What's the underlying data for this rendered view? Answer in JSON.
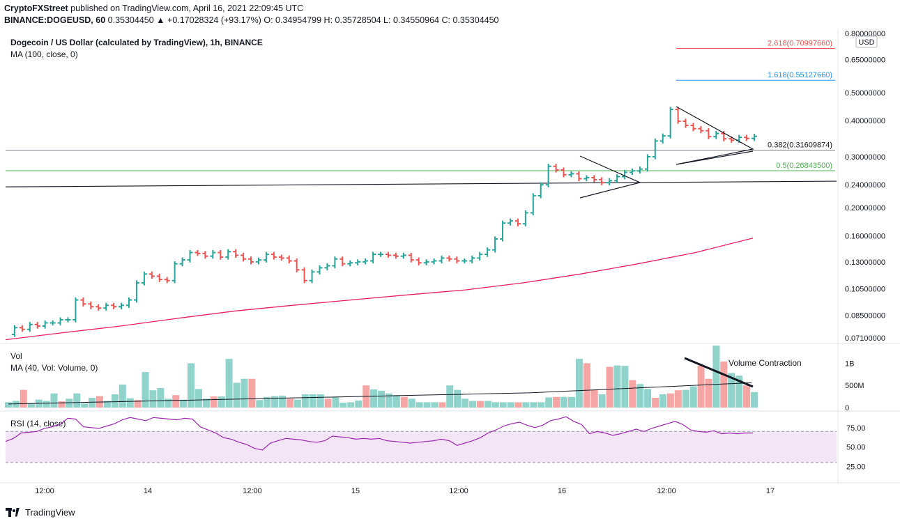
{
  "header": {
    "line1_author": "CryptoFXStreet",
    "line1_rest": "published on TradingView.com, April 16, 2021 22:09:45 UTC",
    "symbol": "BINANCE:DOGEUSD, 60",
    "change": "0.35304450 ▲ +0.17028324 (+93.17%)",
    "ohlc_o": "O: 0.34954799",
    "ohlc_h": "H: 0.35728504",
    "ohlc_l": "L: 0.34550964",
    "ohlc_c": "C: 0.35304450"
  },
  "footer": {
    "brand": "TradingView"
  },
  "colors": {
    "up": "#26a69a",
    "down": "#ef5350",
    "ma": "#e91e63",
    "rsi": "#9c27b0",
    "rsi_band": "#f3e5f5"
  },
  "chart_data": [
    {
      "type": "candlestick",
      "title": "Dogecoin / US Dollar (calculated by TradingView), 1h, BINANCE",
      "indicator": "MA (100, close, 0)",
      "currency": "USD",
      "scale": "log",
      "y_ticks": [
        "0.80000000",
        "0.65000000",
        "0.50000000",
        "0.40000000",
        "0.30000000",
        "0.24000000",
        "0.20000000",
        "0.16000000",
        "0.13000000",
        "0.10500000",
        "0.08500000",
        "0.07100000"
      ],
      "x_ticks": [
        "12:00",
        "14",
        "12:00",
        "15",
        "12:00",
        "16",
        "12:00",
        "17"
      ],
      "price_series": [
        0.073,
        0.077,
        0.076,
        0.079,
        0.078,
        0.08,
        0.08,
        0.082,
        0.082,
        0.096,
        0.093,
        0.091,
        0.09,
        0.092,
        0.091,
        0.092,
        0.096,
        0.11,
        0.118,
        0.116,
        0.113,
        0.112,
        0.128,
        0.132,
        0.14,
        0.139,
        0.136,
        0.14,
        0.135,
        0.141,
        0.137,
        0.133,
        0.13,
        0.132,
        0.138,
        0.135,
        0.134,
        0.131,
        0.122,
        0.112,
        0.12,
        0.124,
        0.126,
        0.133,
        0.128,
        0.129,
        0.13,
        0.131,
        0.138,
        0.138,
        0.137,
        0.136,
        0.137,
        0.132,
        0.129,
        0.13,
        0.131,
        0.134,
        0.133,
        0.131,
        0.131,
        0.134,
        0.138,
        0.143,
        0.156,
        0.177,
        0.18,
        0.176,
        0.192,
        0.22,
        0.24,
        0.278,
        0.27,
        0.26,
        0.262,
        0.252,
        0.254,
        0.25,
        0.244,
        0.248,
        0.256,
        0.265,
        0.268,
        0.272,
        0.3,
        0.34,
        0.354,
        0.437,
        0.398,
        0.385,
        0.375,
        0.369,
        0.352,
        0.361,
        0.346,
        0.342,
        0.35,
        0.347,
        0.353
      ],
      "levels": [
        {
          "label": "2.618(0.70997660)",
          "value": 0.7099766,
          "color": "#ef5350"
        },
        {
          "label": "1.618(0.55127660)",
          "value": 0.5512766,
          "color": "#2196f3"
        },
        {
          "label": "0.382(0.31609874)",
          "value": 0.31609874,
          "color": "#787b86"
        },
        {
          "label": "0.5(0.26843500)",
          "value": 0.268435,
          "color": "#4caf50"
        }
      ],
      "ma100_series": [
        0.07,
        0.074,
        0.078,
        0.083,
        0.088,
        0.092,
        0.096,
        0.1,
        0.104,
        0.11,
        0.118,
        0.128,
        0.14,
        0.157
      ]
    },
    {
      "type": "bar",
      "title": "Vol",
      "indicator": "MA (40, Vol: Volume, 0)",
      "y_ticks": [
        "1B",
        "500M",
        "0"
      ],
      "annotation": "Volume Contraction",
      "values_millions": [
        120,
        150,
        400,
        100,
        180,
        150,
        320,
        140,
        200,
        320,
        90,
        220,
        260,
        150,
        300,
        520,
        210,
        170,
        800,
        390,
        440,
        200,
        280,
        180,
        1000,
        420,
        200,
        250,
        250,
        1100,
        560,
        650,
        650,
        170,
        240,
        260,
        270,
        200,
        180,
        300,
        300,
        300,
        200,
        230,
        110,
        120,
        160,
        500,
        410,
        380,
        320,
        280,
        240,
        200,
        120,
        120,
        120,
        120,
        500,
        400,
        200,
        150,
        150,
        150,
        120,
        120,
        120,
        120,
        120,
        120,
        120,
        230,
        240,
        240,
        240,
        1100,
        1000,
        400,
        300,
        920,
        950,
        940,
        620,
        530,
        420,
        220,
        300,
        320,
        390,
        400,
        480,
        950,
        650,
        1400,
        1040,
        780,
        720,
        500,
        350
      ],
      "ma40": "line"
    },
    {
      "type": "line",
      "title": "RSI",
      "indicator": "RSI (14, close)",
      "y_ticks": [
        "75.00",
        "50.00",
        "25.00"
      ],
      "band": [
        30,
        70
      ],
      "rsi_series": [
        57,
        61,
        68,
        69,
        70,
        74,
        76,
        79,
        87,
        86,
        76,
        75,
        74,
        77,
        80,
        85,
        88,
        86,
        84,
        88,
        87,
        86,
        85,
        87,
        86,
        76,
        72,
        68,
        62,
        60,
        56,
        53,
        48,
        46,
        55,
        58,
        61,
        60,
        59,
        57,
        56,
        58,
        64,
        63,
        62,
        60,
        61,
        60,
        61,
        58,
        57,
        56,
        55,
        56,
        57,
        58,
        60,
        58,
        52,
        55,
        58,
        62,
        68,
        72,
        77,
        80,
        82,
        78,
        75,
        78,
        84,
        86,
        89,
        83,
        79,
        67,
        70,
        68,
        65,
        67,
        70,
        73,
        70,
        74,
        77,
        80,
        83,
        79,
        72,
        70,
        69,
        71,
        67,
        68,
        67,
        68,
        68
      ]
    }
  ]
}
